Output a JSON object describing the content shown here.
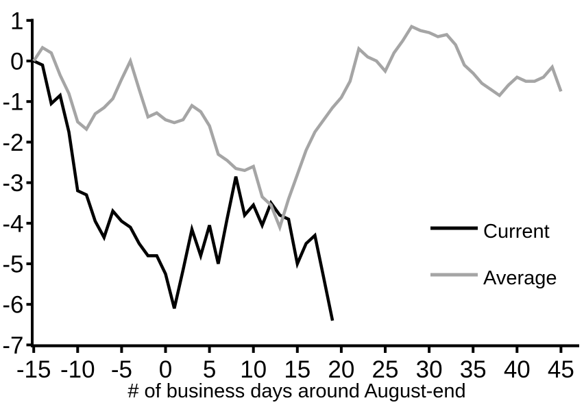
{
  "chart_data": {
    "type": "line",
    "title": "",
    "xlabel": "# of business days around August-end",
    "ylabel": "",
    "xlim": [
      -15,
      45
    ],
    "ylim": [
      -7,
      1
    ],
    "x_ticks": [
      -15,
      -10,
      -5,
      0,
      5,
      10,
      15,
      20,
      25,
      30,
      35,
      40,
      45
    ],
    "y_ticks": [
      1,
      0,
      -1,
      -2,
      -3,
      -4,
      -5,
      -6,
      -7
    ],
    "grid": false,
    "legend_position": "middle-right",
    "axis_color": "#000000",
    "series": [
      {
        "name": "Current",
        "color": "#000000",
        "x": [
          -15,
          -14,
          -13,
          -12,
          -11,
          -10,
          -9,
          -8,
          -7,
          -6,
          -5,
          -4,
          -3,
          -2,
          -1,
          0,
          1,
          2,
          3,
          4,
          5,
          6,
          7,
          8,
          9,
          10,
          11,
          12,
          13,
          14,
          15,
          16,
          17,
          18,
          19
        ],
        "values": [
          0,
          -0.1,
          -1.05,
          -0.85,
          -1.75,
          -3.2,
          -3.3,
          -3.95,
          -4.35,
          -3.7,
          -3.95,
          -4.1,
          -4.5,
          -4.8,
          -4.8,
          -5.25,
          -6.1,
          -5.15,
          -4.15,
          -4.8,
          -4.05,
          -5.0,
          -3.9,
          -2.85,
          -3.8,
          -3.55,
          -4.05,
          -3.5,
          -3.8,
          -3.9,
          -5.0,
          -4.5,
          -4.3,
          -5.35,
          -6.4
        ]
      },
      {
        "name": "Average",
        "color": "#a5a5a5",
        "x": [
          -15,
          -14,
          -13,
          -12,
          -11,
          -10,
          -9,
          -8,
          -7,
          -6,
          -5,
          -4,
          -3,
          -2,
          -1,
          0,
          1,
          2,
          3,
          4,
          5,
          6,
          7,
          8,
          9,
          10,
          11,
          12,
          13,
          14,
          15,
          16,
          17,
          18,
          19,
          20,
          21,
          22,
          23,
          24,
          25,
          26,
          27,
          28,
          29,
          30,
          31,
          32,
          33,
          34,
          35,
          36,
          37,
          38,
          39,
          40,
          41,
          42,
          43,
          44,
          45
        ],
        "values": [
          0,
          0.33,
          0.2,
          -0.35,
          -0.8,
          -1.5,
          -1.68,
          -1.3,
          -1.15,
          -0.93,
          -0.45,
          0,
          -0.7,
          -1.38,
          -1.28,
          -1.45,
          -1.52,
          -1.45,
          -1.1,
          -1.25,
          -1.6,
          -2.3,
          -2.45,
          -2.65,
          -2.7,
          -2.6,
          -3.35,
          -3.55,
          -4.1,
          -3.4,
          -2.8,
          -2.2,
          -1.75,
          -1.45,
          -1.15,
          -0.9,
          -0.5,
          0.3,
          0.1,
          0,
          -0.25,
          0.2,
          0.5,
          0.85,
          0.75,
          0.7,
          0.6,
          0.65,
          0.4,
          -0.1,
          -0.3,
          -0.55,
          -0.7,
          -0.85,
          -0.6,
          -0.4,
          -0.5,
          -0.5,
          -0.4,
          -0.15,
          -0.75
        ]
      }
    ]
  }
}
